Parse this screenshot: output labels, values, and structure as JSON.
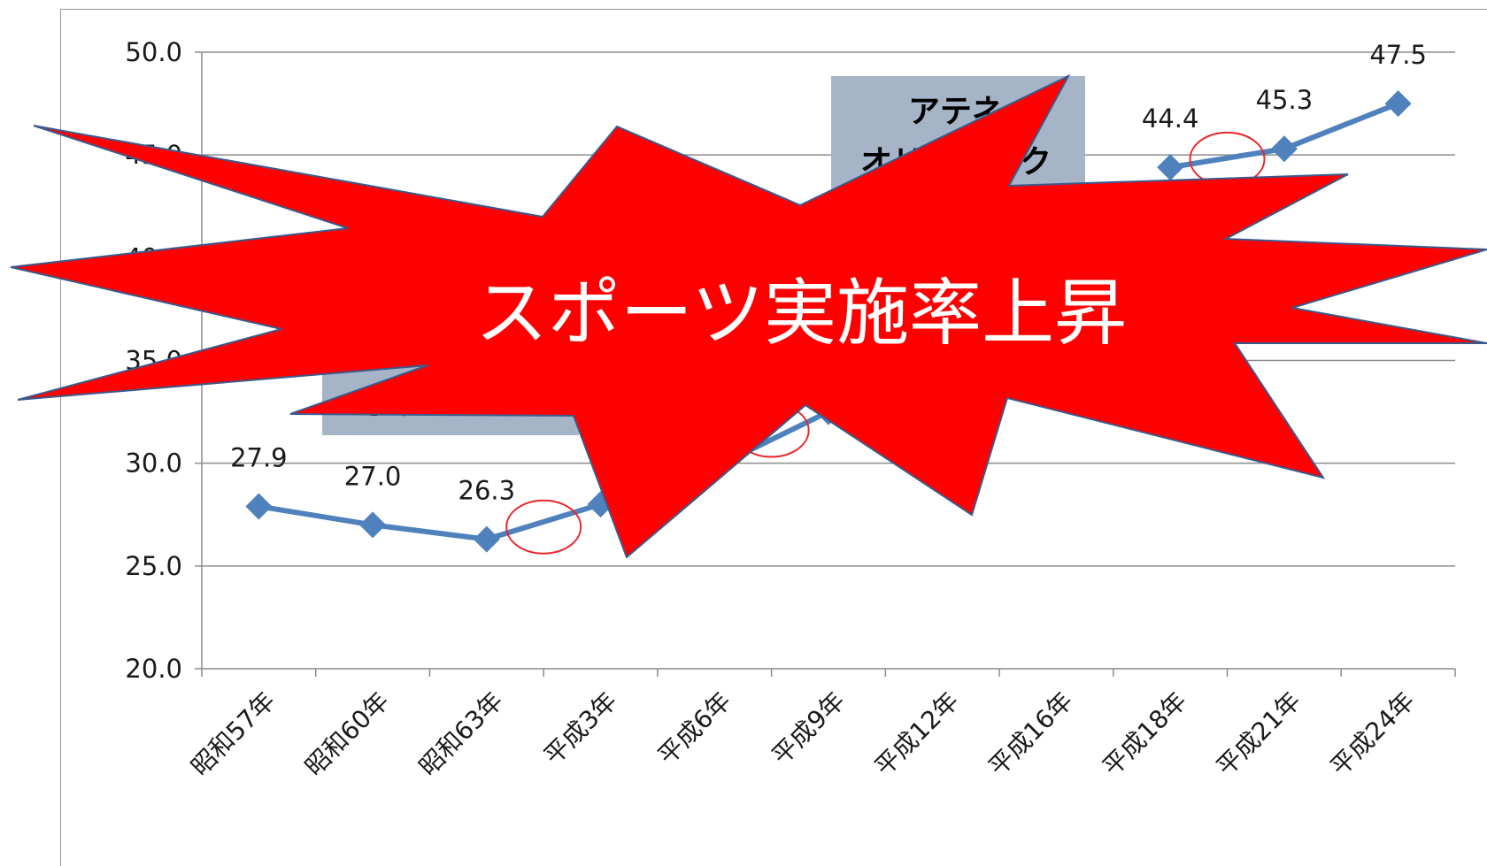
{
  "chart_data": {
    "type": "line",
    "categories": [
      "昭和57年",
      "昭和60年",
      "昭和63年",
      "平成3年",
      "平成6年",
      "平成9年",
      "平成12年",
      "平成16年",
      "平成18年",
      "平成21年",
      "平成24年"
    ],
    "series": [
      {
        "values": [
          27.9,
          27.0,
          26.3,
          28.0,
          29.8,
          32.5,
          null,
          null,
          44.4,
          45.3,
          47.5
        ]
      }
    ],
    "data_labels": [
      "27.9",
      "27.0",
      "26.3",
      "",
      "",
      "",
      "",
      "",
      "44.4",
      "45.3",
      "47.5"
    ],
    "yticks": [
      "20.0",
      "25.0",
      "30.0",
      "35.0",
      "40.0",
      "45.0",
      "50.0"
    ],
    "ylim": [
      20,
      50
    ],
    "grid": true,
    "line_color": "#4f81bd",
    "annotations": {
      "box1_lines": [
        "アテネ",
        "オリンピック"
      ],
      "box2_lines": [
        "",
        "オリ"
      ],
      "box_color": "#a6b4c8",
      "burst_text": "スポーツ実施率上昇",
      "burst_color": "#ff0000",
      "circle_color": "#e8262a"
    }
  }
}
